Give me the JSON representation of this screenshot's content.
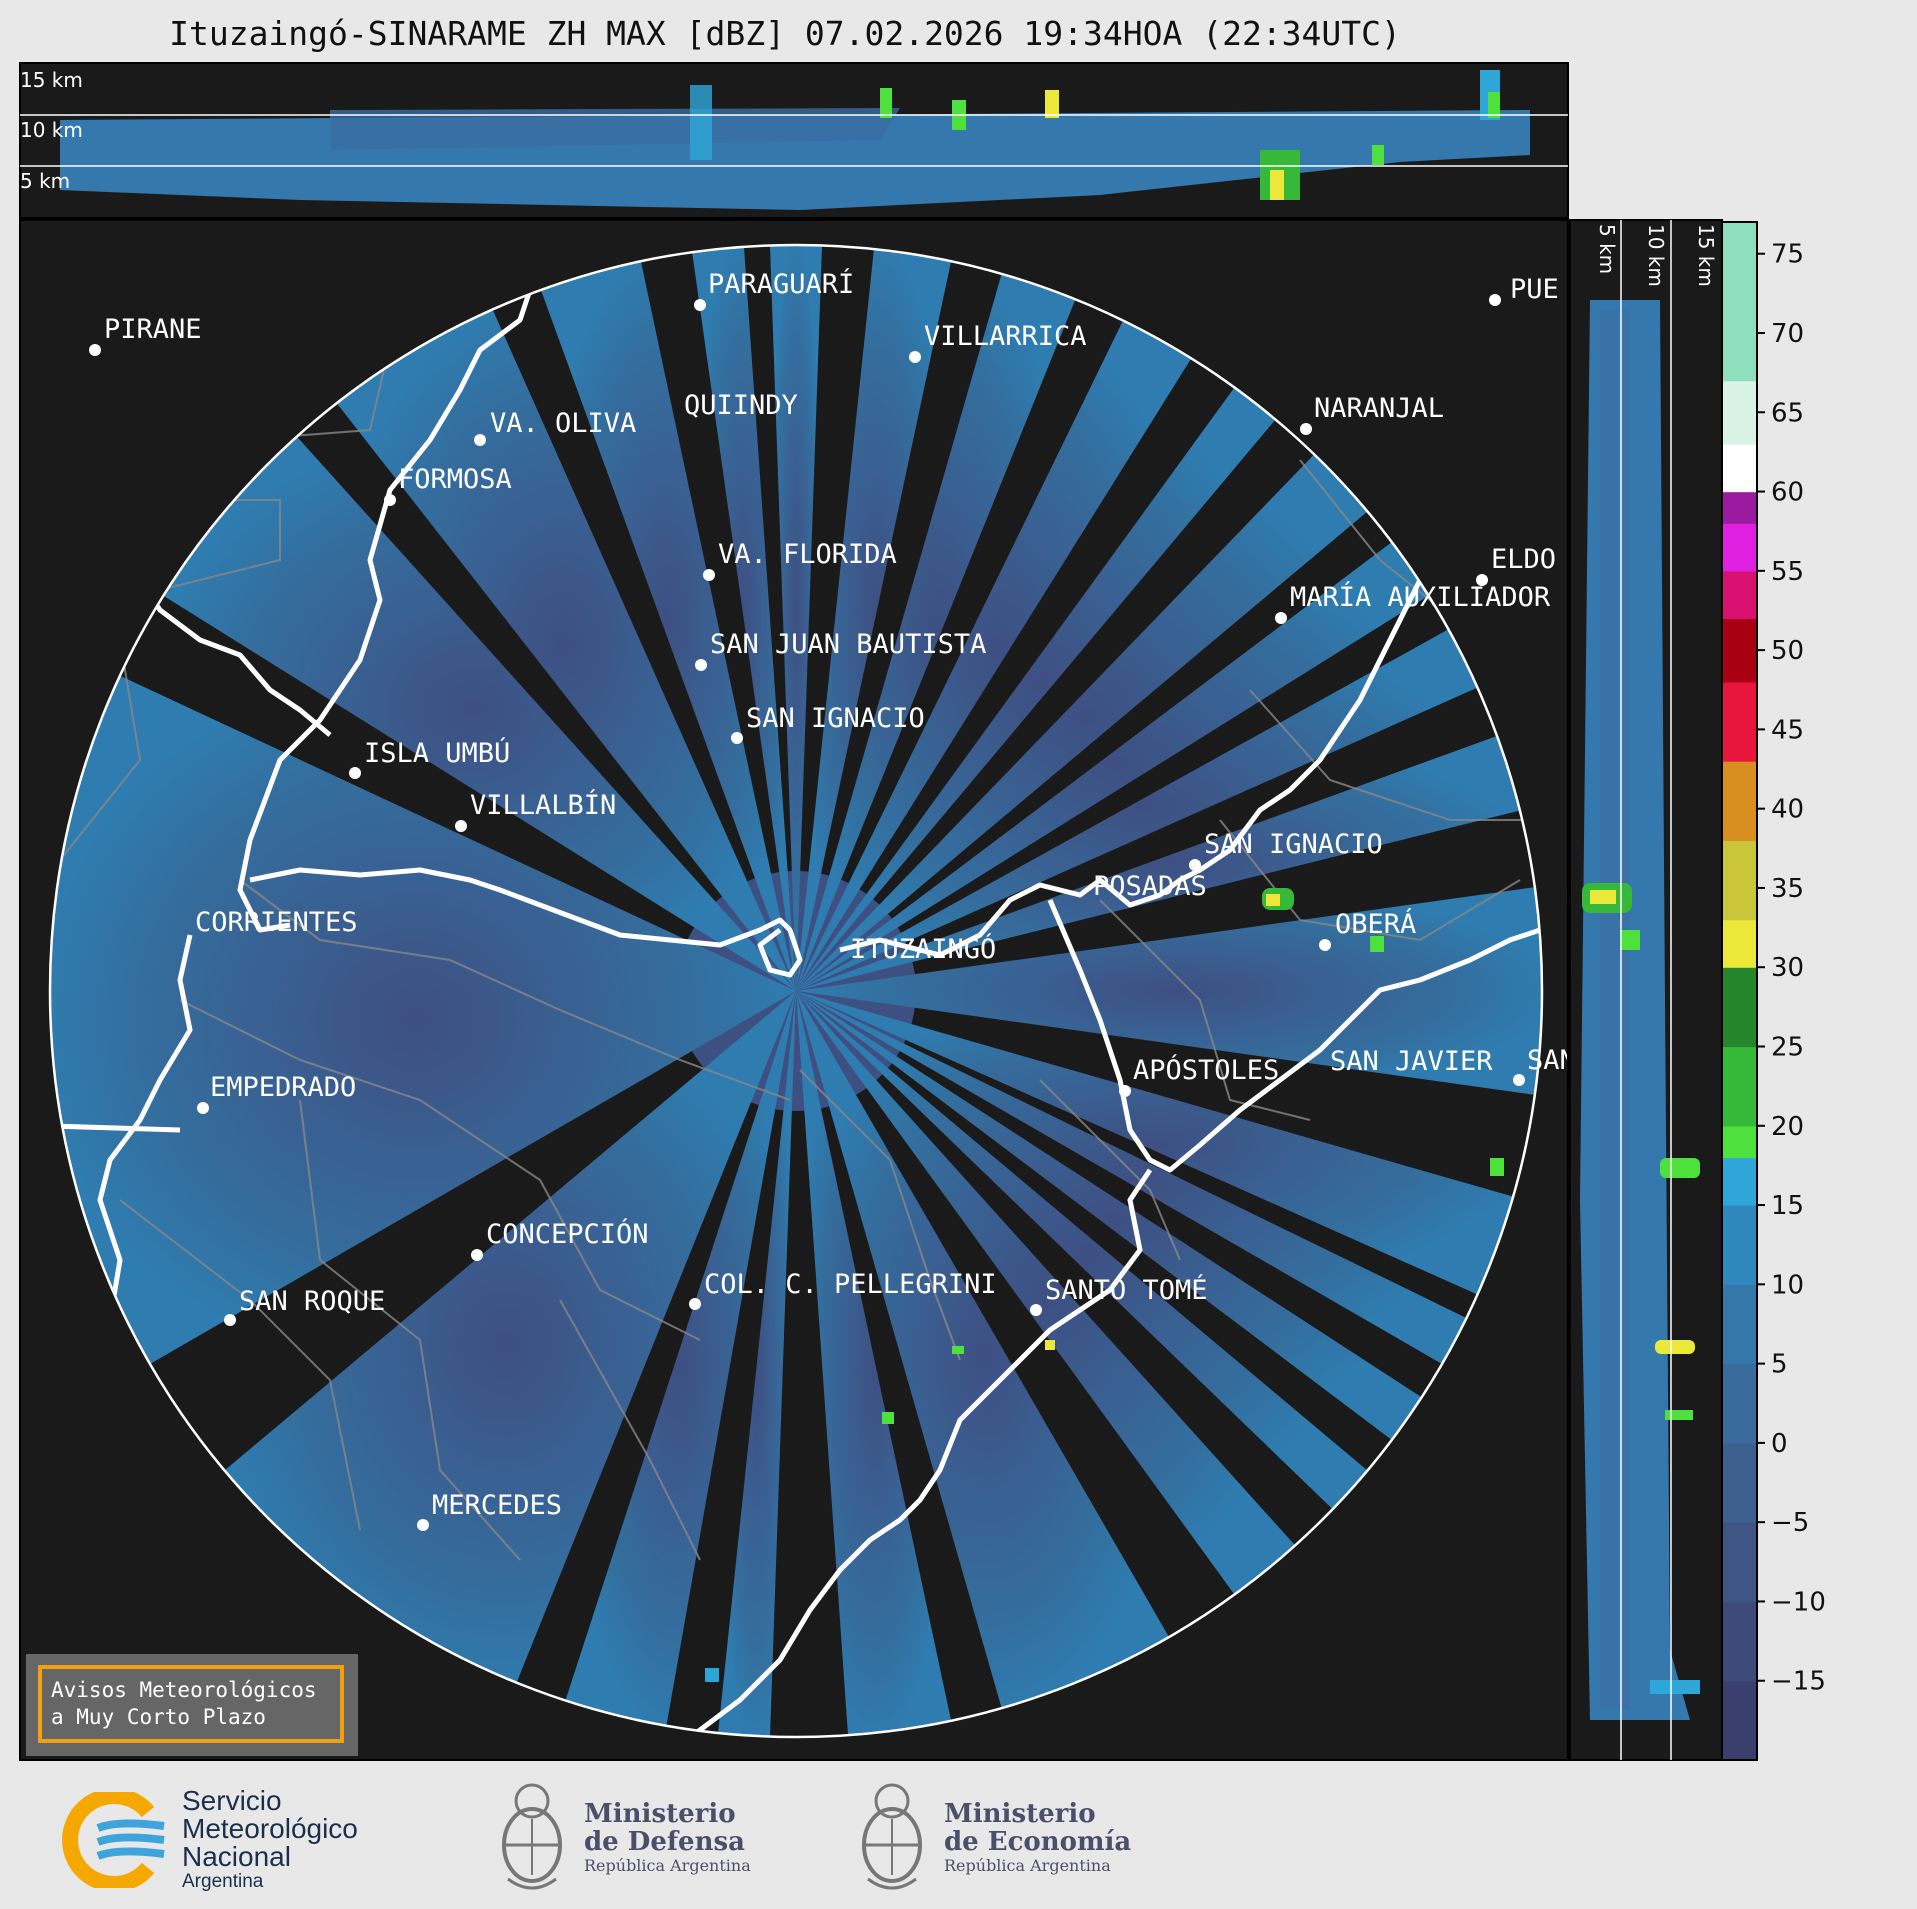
{
  "title": "Ituzaingó-SINARAME ZH MAX [dBZ] 07.02.2026 19:34HOA (22:34UTC)",
  "top_panel_altitudes": [
    "15 km",
    "10 km",
    "5 km"
  ],
  "side_panel_altitudes": [
    "5 km",
    "10 km",
    "15 km"
  ],
  "radar_site": "ITUZAINGÓ",
  "cities": [
    "PIRANE",
    "PARAGUARÍ",
    "VILLARRICA",
    "QUIINDY",
    "VA. OLIVA",
    "FORMOSA",
    "NARANJAL",
    "PUE",
    "ELDO",
    "VA. FLORIDA",
    "MARÍA AUXILIADOR",
    "SAN JUAN BAUTISTA",
    "SAN IGNACIO",
    "ISLA UMBÚ",
    "VILLALBÍN",
    "SAN IGNACIO",
    "POSADAS",
    "CORRIENTES",
    "OBERÁ",
    "EMPEDRADO",
    "APÓSTOLES",
    "SAN JAVIER",
    "SAN",
    "CONCEPCIÓN",
    "COL. C. PELLEGRINI",
    "SANTO TOMÉ",
    "SAN ROQUE",
    "MERCEDES"
  ],
  "colorbar": {
    "unit": "dBZ",
    "ticks": [
      75,
      70,
      65,
      60,
      55,
      50,
      45,
      40,
      35,
      30,
      25,
      20,
      15,
      10,
      5,
      0,
      -5,
      -10,
      -15
    ],
    "tick_labels": [
      "75",
      "70",
      "65",
      "60",
      "55",
      "50",
      "45",
      "40",
      "35",
      "30",
      "25",
      "20",
      "15",
      "10",
      "5",
      "0",
      "−5",
      "−10",
      "−15"
    ],
    "range": [
      -20,
      77
    ],
    "bands": [
      {
        "from": -20,
        "to": -15,
        "color": "#3a3f6e"
      },
      {
        "from": -15,
        "to": -10,
        "color": "#3d4a7a"
      },
      {
        "from": -10,
        "to": -5,
        "color": "#3e5585"
      },
      {
        "from": -5,
        "to": 0,
        "color": "#3d6090"
      },
      {
        "from": 0,
        "to": 5,
        "color": "#396b9c"
      },
      {
        "from": 5,
        "to": 10,
        "color": "#3478aa"
      },
      {
        "from": 10,
        "to": 15,
        "color": "#2f87bb"
      },
      {
        "from": 15,
        "to": 18,
        "color": "#2ea6d8"
      },
      {
        "from": 18,
        "to": 20,
        "color": "#4ee03c"
      },
      {
        "from": 20,
        "to": 25,
        "color": "#36b838"
      },
      {
        "from": 25,
        "to": 30,
        "color": "#24852a"
      },
      {
        "from": 30,
        "to": 33,
        "color": "#ece83a"
      },
      {
        "from": 33,
        "to": 38,
        "color": "#c9c63a"
      },
      {
        "from": 38,
        "to": 43,
        "color": "#d88f1f"
      },
      {
        "from": 43,
        "to": 48,
        "color": "#e8163c"
      },
      {
        "from": 48,
        "to": 52,
        "color": "#a80010"
      },
      {
        "from": 52,
        "to": 55,
        "color": "#d81070"
      },
      {
        "from": 55,
        "to": 58,
        "color": "#e020e0"
      },
      {
        "from": 58,
        "to": 60,
        "color": "#9a1aa0"
      },
      {
        "from": 60,
        "to": 63,
        "color": "#ffffff"
      },
      {
        "from": 63,
        "to": 67,
        "color": "#d8f2e6"
      },
      {
        "from": 67,
        "to": 77,
        "color": "#8ee0bc"
      }
    ]
  },
  "notice": {
    "line1": "Avisos Meteorológicos",
    "line2": "a Muy Corto Plazo"
  },
  "logos": {
    "smn": {
      "line1": "Servicio",
      "line2": "Meteorológico",
      "line3": "Nacional",
      "line4": "Argentina"
    },
    "defensa": {
      "line1": "Ministerio",
      "line2": "de Defensa",
      "line3": "República Argentina"
    },
    "economia": {
      "line1": "Ministerio",
      "line2": "de Economía",
      "line3": "República Argentina"
    }
  }
}
